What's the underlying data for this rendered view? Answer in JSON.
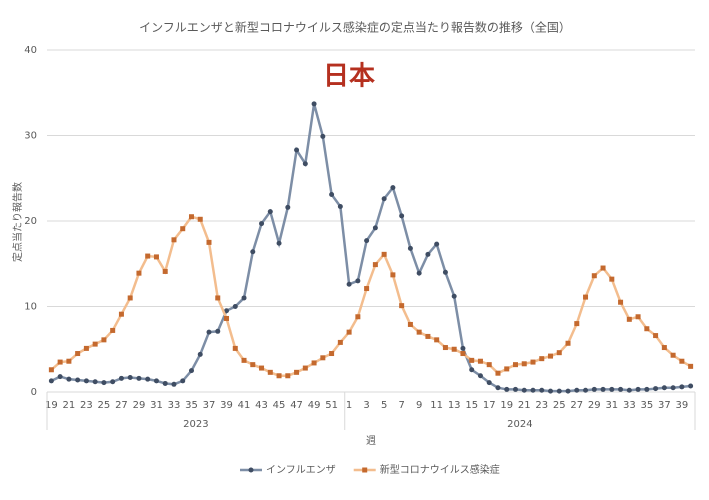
{
  "chart_data": {
    "type": "line",
    "title": "インフルエンザと新型コロナウイルス感染症の定点当たり報告数の推移（全国）",
    "annotation": "日本",
    "y_label": "定点当たり報告数",
    "x_label": "週",
    "group_labels": [
      "2023",
      "2024"
    ],
    "categories": [
      "19",
      null,
      "21",
      null,
      "23",
      null,
      "25",
      null,
      "27",
      null,
      "29",
      null,
      "31",
      null,
      "33",
      null,
      "35",
      null,
      "37",
      null,
      "39",
      null,
      "41",
      null,
      "43",
      null,
      "45",
      null,
      "47",
      null,
      "49",
      null,
      "51",
      null,
      "1",
      null,
      "3",
      null,
      "5",
      null,
      "7",
      null,
      "9",
      null,
      "11",
      null,
      "13",
      null,
      "15",
      null,
      "17",
      null,
      "19",
      null,
      "21",
      null,
      "23",
      null,
      "25",
      null,
      "27",
      null,
      "29",
      null,
      "31",
      null,
      "33",
      null,
      "35",
      null,
      "37",
      null,
      "39",
      null
    ],
    "ylim": [
      0,
      40
    ],
    "yticks": [
      0,
      10,
      20,
      30,
      40
    ],
    "grid": true,
    "series": [
      {
        "name": "インフルエンザ",
        "color": "#7d8ea6",
        "marker": "circle",
        "marker_color": "#3f4d63",
        "values": [
          1.3,
          1.8,
          1.5,
          1.4,
          1.3,
          1.2,
          1.1,
          1.2,
          1.6,
          1.7,
          1.6,
          1.5,
          1.3,
          1.0,
          0.9,
          1.3,
          2.5,
          4.4,
          7.0,
          7.1,
          9.5,
          10.0,
          11.0,
          16.4,
          19.7,
          21.1,
          17.4,
          21.6,
          28.3,
          26.7,
          33.7,
          29.9,
          23.1,
          21.7,
          12.6,
          13.0,
          17.7,
          19.2,
          22.6,
          23.9,
          20.6,
          16.8,
          13.9,
          16.1,
          17.3,
          14.0,
          11.2,
          5.1,
          2.6,
          1.9,
          1.1,
          0.5,
          0.3,
          0.3,
          0.2,
          0.2,
          0.2,
          0.1,
          0.1,
          0.1,
          0.2,
          0.2,
          0.3,
          0.3,
          0.3,
          0.3,
          0.2,
          0.3,
          0.3,
          0.4,
          0.5,
          0.5,
          0.6,
          0.7
        ]
      },
      {
        "name": "新型コロナウイルス感染症",
        "color": "#f3bd8e",
        "marker": "square",
        "marker_color": "#c4692e",
        "values": [
          2.6,
          3.5,
          3.6,
          4.5,
          5.1,
          5.6,
          6.1,
          7.2,
          9.1,
          11.0,
          13.9,
          15.9,
          15.8,
          14.1,
          17.8,
          19.1,
          20.5,
          20.2,
          17.5,
          11.0,
          8.6,
          5.1,
          3.7,
          3.2,
          2.8,
          2.3,
          1.9,
          1.9,
          2.3,
          2.8,
          3.4,
          4.0,
          4.5,
          5.8,
          7.0,
          8.8,
          12.1,
          14.9,
          16.1,
          13.7,
          10.1,
          7.9,
          7.0,
          6.5,
          6.1,
          5.2,
          5.0,
          4.5,
          3.7,
          3.6,
          3.2,
          2.2,
          2.7,
          3.2,
          3.3,
          3.5,
          3.9,
          4.2,
          4.6,
          5.7,
          8.0,
          11.1,
          13.6,
          14.5,
          13.2,
          10.5,
          8.5,
          8.8,
          7.4,
          6.6,
          5.2,
          4.3,
          3.6,
          3.0
        ]
      }
    ]
  }
}
